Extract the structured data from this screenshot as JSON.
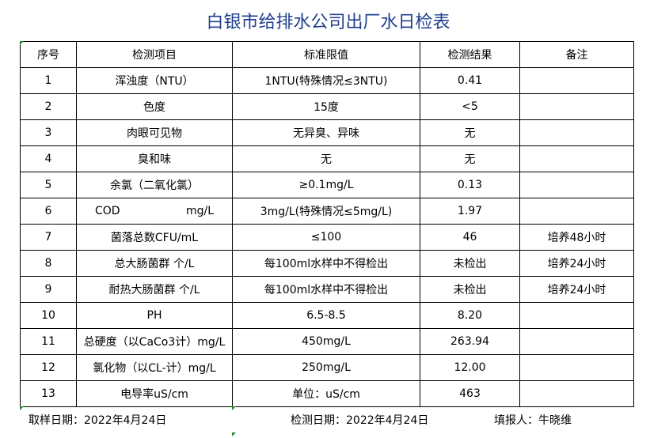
{
  "title": "白银市给排水公司出厂水日检表",
  "table": {
    "headers": [
      "序号",
      "检测项目",
      "标准限值",
      "检测结果",
      "备注"
    ],
    "rows": [
      [
        "1",
        "浑浊度（NTU）",
        "1NTU(特殊情况≤3NTU)",
        "0.41",
        ""
      ],
      [
        "2",
        "色度",
        "15度",
        "<5",
        ""
      ],
      [
        "3",
        "肉眼可见物",
        "无异臭、异味",
        "无",
        ""
      ],
      [
        "4",
        "臭和味",
        "无",
        "无",
        ""
      ],
      [
        "5",
        "余氯（二氧化氯）",
        "≥0.1mg/L",
        "0.13",
        ""
      ],
      [
        "6",
        "COD        mg/L",
        "3mg/L(特殊情况≤5mg/L)",
        "1.97",
        ""
      ],
      [
        "7",
        "菌落总数CFU/mL",
        "≤100",
        "46",
        "培养48小时"
      ],
      [
        "8",
        "总大肠菌群 个/L",
        "每100ml水样中不得检出",
        "未检出",
        "培养24小时"
      ],
      [
        "9",
        "耐热大肠菌群 个/L",
        "每100ml水样中不得检出",
        "未检出",
        "培养24小时"
      ],
      [
        "10",
        "PH",
        "6.5-8.5",
        "8.20",
        ""
      ],
      [
        "11",
        "总硬度（以CaCo3计）mg/L",
        "450mg/L",
        "263.94",
        ""
      ],
      [
        "12",
        "氯化物（以CL-计）mg/L",
        "250mg/L",
        "12.00",
        ""
      ],
      [
        "13",
        "电导率uS/cm",
        "单位：uS/cm",
        "463",
        ""
      ]
    ]
  },
  "footer": {
    "sampling_date": "取样日期：2022年4月24日",
    "test_date": "检测日期：2022年4月24日",
    "reporter": "填报人：牛晓维"
  }
}
